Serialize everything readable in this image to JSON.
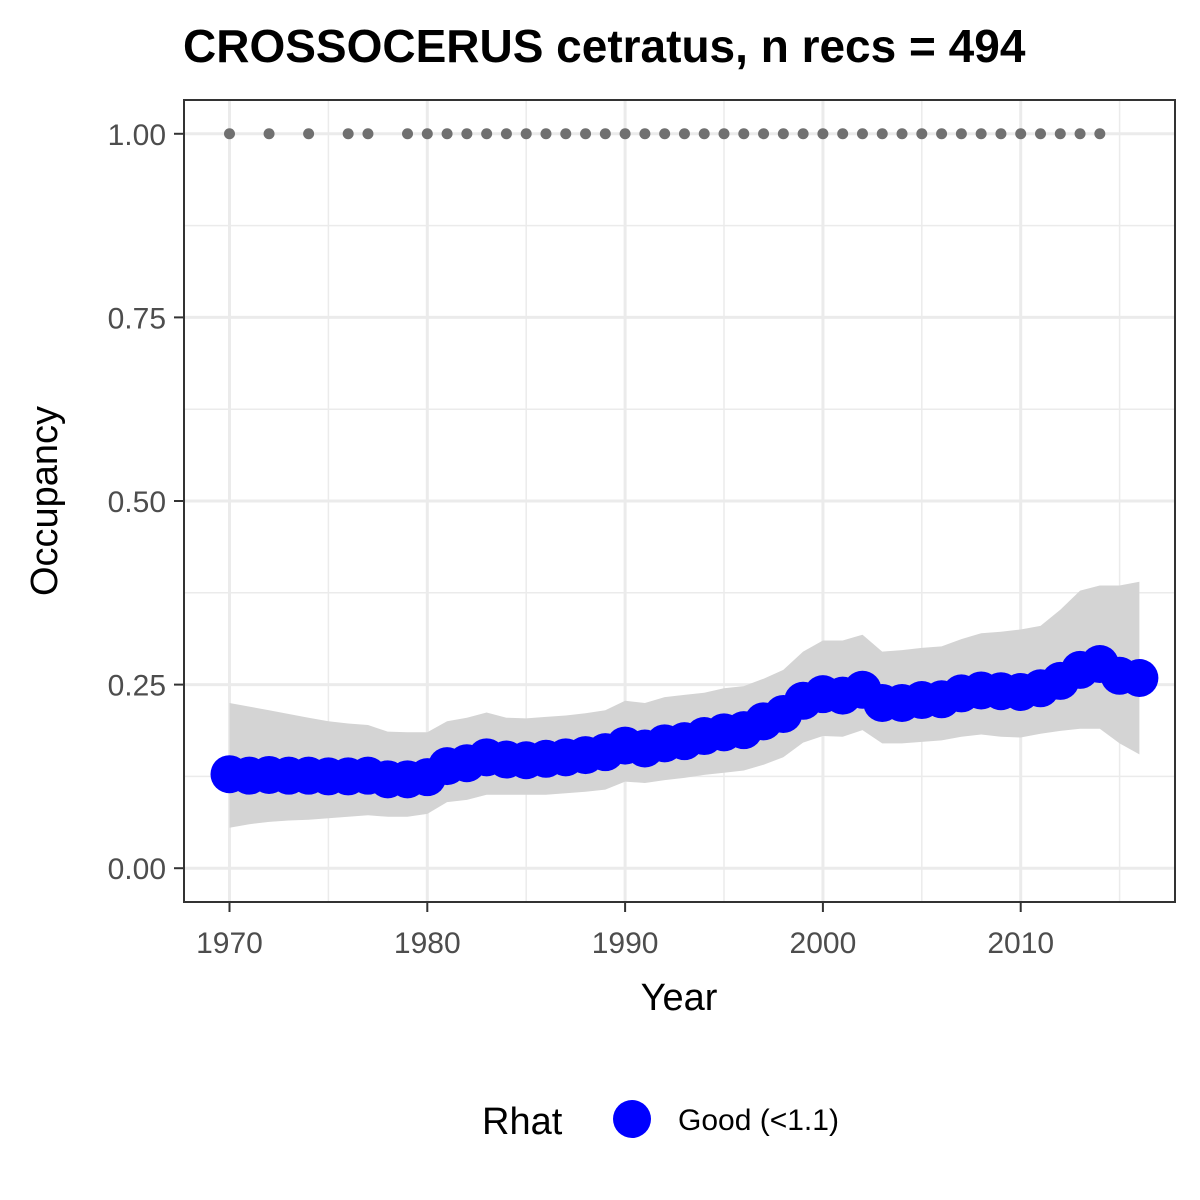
{
  "chart_data": {
    "type": "line",
    "title": "CROSSOCERUS cetratus, n recs = 494",
    "xlabel": "Year",
    "ylabel": "Occupancy",
    "xlim": [
      1967.7,
      2017.8
    ],
    "ylim": [
      -0.046,
      1.046
    ],
    "x_ticks": [
      1970,
      1980,
      1990,
      2000,
      2010
    ],
    "x_tick_labels": [
      "1970",
      "1980",
      "1990",
      "2000",
      "2010"
    ],
    "y_ticks": [
      0,
      0.25,
      0.5,
      0.75,
      1
    ],
    "y_tick_labels": [
      "0.00",
      "0.25",
      "0.50",
      "0.75",
      "1.00"
    ],
    "grid": true,
    "legend": {
      "position": "bottom",
      "title": "Rhat",
      "items": [
        {
          "label": "Good (<1.1)",
          "color": "#0000ff"
        }
      ]
    },
    "colors": {
      "points": "#0000ff",
      "ribbon": "#d4d4d4",
      "record_dots": "#707070",
      "grid": "#ebebeb",
      "panel_border": "#333333"
    },
    "series": [
      {
        "kind": "mean_occupancy",
        "x": [
          1970,
          1971,
          1972,
          1973,
          1974,
          1975,
          1976,
          1977,
          1978,
          1979,
          1980,
          1981,
          1982,
          1983,
          1984,
          1985,
          1986,
          1987,
          1988,
          1989,
          1990,
          1991,
          1992,
          1993,
          1994,
          1995,
          1996,
          1997,
          1998,
          1999,
          2000,
          2001,
          2002,
          2003,
          2004,
          2005,
          2006,
          2007,
          2008,
          2009,
          2010,
          2011,
          2012,
          2013,
          2014,
          2015,
          2016
        ],
        "y": [
          0.128,
          0.126,
          0.127,
          0.126,
          0.126,
          0.125,
          0.125,
          0.126,
          0.121,
          0.121,
          0.124,
          0.139,
          0.143,
          0.151,
          0.148,
          0.147,
          0.149,
          0.151,
          0.154,
          0.158,
          0.167,
          0.163,
          0.17,
          0.173,
          0.18,
          0.185,
          0.188,
          0.2,
          0.21,
          0.228,
          0.237,
          0.235,
          0.243,
          0.225,
          0.225,
          0.229,
          0.23,
          0.238,
          0.242,
          0.241,
          0.24,
          0.245,
          0.255,
          0.27,
          0.278,
          0.262,
          0.259
        ]
      },
      {
        "kind": "credible_interval",
        "x": [
          1970,
          1971,
          1972,
          1973,
          1974,
          1975,
          1976,
          1977,
          1978,
          1979,
          1980,
          1981,
          1982,
          1983,
          1984,
          1985,
          1986,
          1987,
          1988,
          1989,
          1990,
          1991,
          1992,
          1993,
          1994,
          1995,
          1996,
          1997,
          1998,
          1999,
          2000,
          2001,
          2002,
          2003,
          2004,
          2005,
          2006,
          2007,
          2008,
          2009,
          2010,
          2011,
          2012,
          2013,
          2014,
          2015,
          2016
        ],
        "lower": [
          0.055,
          0.06,
          0.063,
          0.065,
          0.066,
          0.068,
          0.07,
          0.072,
          0.07,
          0.07,
          0.074,
          0.09,
          0.093,
          0.1,
          0.1,
          0.1,
          0.1,
          0.102,
          0.104,
          0.107,
          0.118,
          0.116,
          0.12,
          0.123,
          0.127,
          0.13,
          0.133,
          0.141,
          0.151,
          0.171,
          0.18,
          0.179,
          0.188,
          0.17,
          0.17,
          0.172,
          0.174,
          0.179,
          0.182,
          0.179,
          0.178,
          0.183,
          0.187,
          0.19,
          0.19,
          0.17,
          0.155
        ],
        "upper": [
          0.225,
          0.22,
          0.215,
          0.21,
          0.205,
          0.2,
          0.197,
          0.195,
          0.186,
          0.185,
          0.185,
          0.2,
          0.205,
          0.212,
          0.205,
          0.204,
          0.206,
          0.208,
          0.211,
          0.215,
          0.228,
          0.225,
          0.233,
          0.236,
          0.239,
          0.245,
          0.248,
          0.258,
          0.27,
          0.295,
          0.31,
          0.31,
          0.318,
          0.295,
          0.297,
          0.3,
          0.302,
          0.312,
          0.32,
          0.322,
          0.325,
          0.33,
          0.352,
          0.378,
          0.385,
          0.385,
          0.39
        ]
      },
      {
        "kind": "years_with_records",
        "x": [
          1970,
          1972,
          1974,
          1976,
          1977,
          1979,
          1980,
          1981,
          1982,
          1983,
          1984,
          1985,
          1986,
          1987,
          1988,
          1989,
          1990,
          1991,
          1992,
          1993,
          1994,
          1995,
          1996,
          1997,
          1998,
          1999,
          2000,
          2001,
          2002,
          2003,
          2004,
          2005,
          2006,
          2007,
          2008,
          2009,
          2010,
          2011,
          2012,
          2013,
          2014
        ],
        "y": 1
      }
    ]
  }
}
